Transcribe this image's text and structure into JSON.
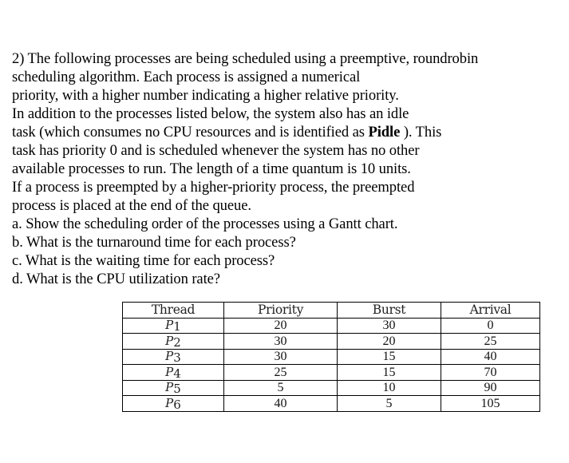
{
  "question": {
    "lines": [
      "2) The following processes are being scheduled using a preemptive, roundrobin",
      "scheduling algorithm. Each process is assigned a numerical",
      "priority, with a higher number indicating a higher relative priority.",
      "In addition to the processes listed below, the system also has an idle",
      "task (which consumes no CPU resources and is identified as ",
      "task has priority 0 and is scheduled whenever the system has no other",
      "available processes to run. The length of a time quantum is 10 units.",
      "If a process is preempted by a higher-priority process, the preempted",
      "process is placed at the end of the queue.",
      "a. Show the scheduling order of the processes using a Gantt chart.",
      "b. What is the turnaround time for each process?",
      "c. What is the waiting time for each process?",
      "d. What is the CPU utilization rate?"
    ],
    "idle_task_name": "Pidle",
    "line5_suffix": " ). This"
  },
  "table": {
    "headers": [
      "Thread",
      "Priority",
      "Burst",
      "Arrival"
    ],
    "rows": [
      {
        "thread_letter": "P",
        "thread_num": "1",
        "priority": "20",
        "burst": "30",
        "arrival": "0"
      },
      {
        "thread_letter": "P",
        "thread_num": "2",
        "priority": "30",
        "burst": "20",
        "arrival": "25"
      },
      {
        "thread_letter": "P",
        "thread_num": "3",
        "priority": "30",
        "burst": "15",
        "arrival": "40"
      },
      {
        "thread_letter": "P",
        "thread_num": "4",
        "priority": "25",
        "burst": "15",
        "arrival": "70"
      },
      {
        "thread_letter": "P",
        "thread_num": "5",
        "priority": "5",
        "burst": "10",
        "arrival": "90"
      },
      {
        "thread_letter": "P",
        "thread_num": "6",
        "priority": "40",
        "burst": "5",
        "arrival": "105"
      }
    ]
  }
}
